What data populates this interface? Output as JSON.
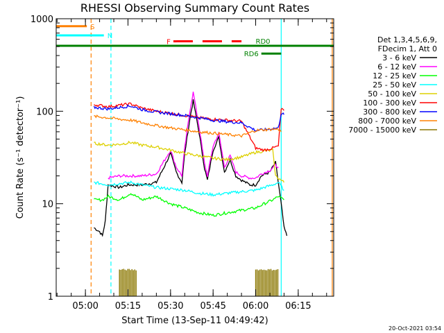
{
  "chart_data": {
    "type": "line",
    "title": "RHESSI Observing Summary Count Rates",
    "xlabel": "Start Time (13-Sep-11 04:49:42)",
    "ylabel": "Count Rate (s⁻¹ detector⁻¹)",
    "ylog": true,
    "xlim": [
      "04:49:42",
      "06:27:30"
    ],
    "ylim": [
      1,
      1000
    ],
    "x_ticks": [
      "05:00",
      "05:15",
      "05:30",
      "05:45",
      "06:00",
      "06:15"
    ],
    "y_ticks": [
      {
        "value": 1,
        "label": "1"
      },
      {
        "value": 10,
        "label": "10"
      },
      {
        "value": 100,
        "label": "100"
      },
      {
        "value": 1000,
        "label": "1000"
      }
    ],
    "legend_header": [
      "Det 1,3,4,5,6,9,",
      "FDecim 1, Att 0"
    ],
    "legend_placement": "right",
    "series": [
      {
        "name": "3 - 6 keV",
        "color": "#000000",
        "points": [
          [
            "05:03",
            5.5
          ],
          [
            "05:05",
            5
          ],
          [
            "05:06",
            4.5
          ],
          [
            "05:07",
            6.5
          ],
          [
            "05:08",
            16
          ],
          [
            "05:12",
            15
          ],
          [
            "05:15",
            16
          ],
          [
            "05:20",
            16
          ],
          [
            "05:25",
            17
          ],
          [
            "05:28",
            26
          ],
          [
            "05:30",
            35
          ],
          [
            "05:32",
            22
          ],
          [
            "05:34",
            17
          ],
          [
            "05:35",
            35
          ],
          [
            "05:37",
            90
          ],
          [
            "05:38",
            130
          ],
          [
            "05:40",
            60
          ],
          [
            "05:42",
            24
          ],
          [
            "05:43",
            18
          ],
          [
            "05:45",
            38
          ],
          [
            "05:47",
            52
          ],
          [
            "05:49",
            22
          ],
          [
            "05:51",
            30
          ],
          [
            "05:53",
            20
          ],
          [
            "05:55",
            18
          ],
          [
            "05:58",
            16
          ],
          [
            "06:00",
            16
          ],
          [
            "06:02",
            20
          ],
          [
            "06:05",
            22
          ],
          [
            "06:07",
            28
          ],
          [
            "06:09",
            10
          ],
          [
            "06:10",
            5.5
          ],
          [
            "06:11",
            4.5
          ]
        ]
      },
      {
        "name": "6 - 12 keV",
        "color": "#ff00ff",
        "points": [
          [
            "05:08",
            19
          ],
          [
            "05:12",
            20
          ],
          [
            "05:15",
            20
          ],
          [
            "05:20",
            20
          ],
          [
            "05:25",
            21
          ],
          [
            "05:28",
            30
          ],
          [
            "05:30",
            38
          ],
          [
            "05:32",
            25
          ],
          [
            "05:34",
            20
          ],
          [
            "05:35",
            40
          ],
          [
            "05:37",
            110
          ],
          [
            "05:38",
            160
          ],
          [
            "05:40",
            70
          ],
          [
            "05:42",
            27
          ],
          [
            "05:43",
            20
          ],
          [
            "05:45",
            42
          ],
          [
            "05:47",
            58
          ],
          [
            "05:49",
            25
          ],
          [
            "05:51",
            33
          ],
          [
            "05:53",
            22
          ],
          [
            "05:55",
            20
          ],
          [
            "05:58",
            19
          ],
          [
            "06:00",
            19
          ],
          [
            "06:02",
            21
          ],
          [
            "06:05",
            23
          ],
          [
            "06:07",
            26
          ],
          [
            "06:08",
            25
          ]
        ]
      },
      {
        "name": "12 - 25 keV",
        "color": "#00ff00",
        "points": [
          [
            "05:03",
            11
          ],
          [
            "05:06",
            11
          ],
          [
            "05:08",
            12
          ],
          [
            "05:12",
            11
          ],
          [
            "05:16",
            13
          ],
          [
            "05:20",
            11
          ],
          [
            "05:25",
            12
          ],
          [
            "05:30",
            10
          ],
          [
            "05:35",
            9
          ],
          [
            "05:40",
            8
          ],
          [
            "05:45",
            7.5
          ],
          [
            "05:50",
            8
          ],
          [
            "05:55",
            8.5
          ],
          [
            "06:00",
            9
          ],
          [
            "06:03",
            10
          ],
          [
            "06:06",
            11
          ],
          [
            "06:08",
            12
          ],
          [
            "06:10",
            11
          ]
        ]
      },
      {
        "name": "25 - 50 keV",
        "color": "#00ffff",
        "points": [
          [
            "05:03",
            17
          ],
          [
            "05:08",
            16
          ],
          [
            "05:12",
            16.5
          ],
          [
            "05:16",
            17
          ],
          [
            "05:20",
            16
          ],
          [
            "05:25",
            15
          ],
          [
            "05:30",
            14.5
          ],
          [
            "05:35",
            14
          ],
          [
            "05:40",
            13
          ],
          [
            "05:45",
            12.5
          ],
          [
            "05:50",
            13
          ],
          [
            "05:55",
            13.5
          ],
          [
            "06:00",
            14
          ],
          [
            "06:03",
            15
          ],
          [
            "06:06",
            16
          ],
          [
            "06:08",
            17
          ],
          [
            "06:10",
            14
          ]
        ]
      },
      {
        "name": "50 - 100 keV",
        "color": "#ddd000",
        "points": [
          [
            "05:03",
            45
          ],
          [
            "05:08",
            43
          ],
          [
            "05:12",
            44
          ],
          [
            "05:16",
            46
          ],
          [
            "05:20",
            43
          ],
          [
            "05:25",
            41
          ],
          [
            "05:30",
            38
          ],
          [
            "05:35",
            35
          ],
          [
            "05:40",
            33
          ],
          [
            "05:45",
            31
          ],
          [
            "05:50",
            30
          ],
          [
            "05:55",
            32
          ],
          [
            "06:00",
            36
          ],
          [
            "06:03",
            37
          ],
          [
            "06:06",
            38
          ],
          [
            "06:07",
            20
          ],
          [
            "06:10",
            17
          ]
        ]
      },
      {
        "name": "100 - 300 keV",
        "color": "#ff0000",
        "points": [
          [
            "05:03",
            118
          ],
          [
            "05:08",
            112
          ],
          [
            "05:12",
            116
          ],
          [
            "05:16",
            120
          ],
          [
            "05:20",
            108
          ],
          [
            "05:25",
            100
          ],
          [
            "05:30",
            95
          ],
          [
            "05:35",
            90
          ],
          [
            "05:40",
            85
          ],
          [
            "05:45",
            82
          ],
          [
            "05:50",
            80
          ],
          [
            "05:55",
            78
          ],
          [
            "06:00",
            40
          ],
          [
            "06:03",
            38
          ],
          [
            "06:06",
            40
          ],
          [
            "06:08",
            42
          ],
          [
            "06:09",
            105
          ],
          [
            "06:10",
            102
          ]
        ]
      },
      {
        "name": "300 - 800 keV",
        "color": "#0000ff",
        "points": [
          [
            "05:03",
            110
          ],
          [
            "05:08",
            106
          ],
          [
            "05:12",
            110
          ],
          [
            "05:16",
            114
          ],
          [
            "05:20",
            104
          ],
          [
            "05:25",
            98
          ],
          [
            "05:30",
            94
          ],
          [
            "05:35",
            90
          ],
          [
            "05:40",
            85
          ],
          [
            "05:45",
            80
          ],
          [
            "05:50",
            77
          ],
          [
            "05:55",
            75
          ],
          [
            "06:00",
            62
          ],
          [
            "06:03",
            63
          ],
          [
            "06:06",
            65
          ],
          [
            "06:08",
            66
          ],
          [
            "06:09",
            95
          ],
          [
            "06:10",
            92
          ]
        ]
      },
      {
        "name": "800 - 7000 keV",
        "color": "#ff8000",
        "points": [
          [
            "05:03",
            88
          ],
          [
            "05:08",
            85
          ],
          [
            "05:12",
            82
          ],
          [
            "05:16",
            80
          ],
          [
            "05:20",
            75
          ],
          [
            "05:25",
            70
          ],
          [
            "05:30",
            66
          ],
          [
            "05:35",
            63
          ],
          [
            "05:40",
            60
          ],
          [
            "05:45",
            58
          ],
          [
            "05:50",
            56
          ],
          [
            "05:55",
            54
          ],
          [
            "06:00",
            62
          ],
          [
            "06:03",
            63
          ],
          [
            "06:06",
            64
          ],
          [
            "06:08",
            64
          ],
          [
            "06:09",
            60
          ]
        ]
      },
      {
        "name": "7000 - 15000 keV",
        "color": "#8b7700",
        "points": [
          [
            "05:12",
            1.9
          ],
          [
            "05:18",
            1.9
          ],
          [
            "06:00",
            1.9
          ],
          [
            "06:08",
            1.9
          ]
        ]
      }
    ],
    "flags": [
      {
        "label": "S",
        "color": "#ff8000",
        "start": "04:49:42",
        "end": "05:00:30",
        "level": 830,
        "style": "solid"
      },
      {
        "label": "N",
        "color": "#00ffff",
        "start": "04:49:42",
        "end": "05:06:30",
        "level": 660,
        "style": "solid"
      },
      {
        "label": "F",
        "color": "#ff0000",
        "start": "05:31",
        "end": "05:55",
        "level": 570,
        "style": "dashed"
      },
      {
        "label": "RD0",
        "color": "#008000",
        "start": "04:49:42",
        "end": "06:27:30",
        "level": 510,
        "style": "solid"
      },
      {
        "label": "RD6",
        "color": "#008000",
        "start": "06:02",
        "end": "06:09",
        "level": 420,
        "style": "solid"
      }
    ],
    "vertical_lines": [
      {
        "time": "05:02",
        "color": "#ff8000",
        "style": "dashed"
      },
      {
        "time": "05:09",
        "color": "#00ffff",
        "style": "dashed"
      },
      {
        "time": "06:09",
        "color": "#00ffff",
        "style": "solid"
      },
      {
        "time": "06:27",
        "color": "#ff8000",
        "style": "solid"
      }
    ],
    "grid": false
  },
  "footer": {
    "timestamp": "20-Oct-2021 03:54"
  }
}
